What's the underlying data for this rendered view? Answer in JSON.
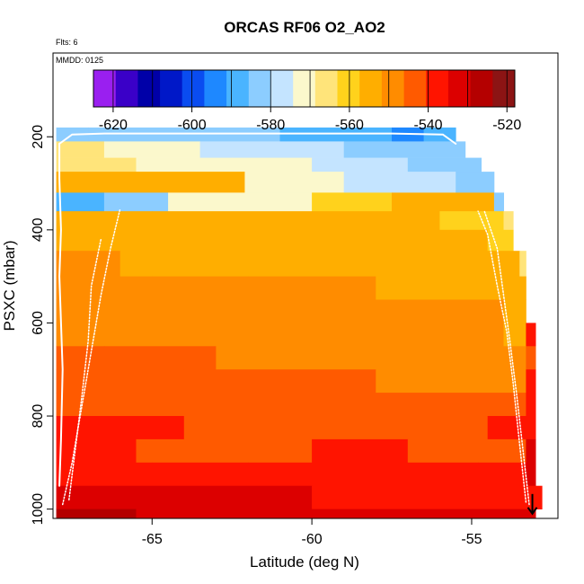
{
  "chart_data": {
    "type": "heatmap",
    "title": "ORCAS RF06 O2_AO2",
    "flights_label": "Flts: 6",
    "date_label": "MMDD: 0125",
    "xlabel": "Latitude (deg N)",
    "ylabel": "PSXC (mbar)",
    "xlim": [
      -68.1,
      -52.3
    ],
    "ylim": [
      1020,
      20
    ],
    "y_reversed": true,
    "x_ticks": [
      -65,
      -60,
      -55
    ],
    "x_tick_labels": [
      "-65",
      "-60",
      "-55"
    ],
    "y_ticks": [
      200,
      400,
      600,
      800,
      1000
    ],
    "y_tick_labels": [
      "200",
      "400",
      "600",
      "800",
      "1000"
    ],
    "colorbar": {
      "ticks": [
        -620,
        -600,
        -580,
        -560,
        -540,
        -520
      ],
      "tick_labels": [
        "-620",
        "-600",
        "-580",
        "-560",
        "-540",
        "-520"
      ],
      "range": [
        -625,
        -518
      ],
      "colors": [
        "#9a1ff0",
        "#3a00c8",
        "#0000a8",
        "#0018c8",
        "#0a4cf0",
        "#1e88ff",
        "#4ab4ff",
        "#8ccdff",
        "#c4e4ff",
        "#fbf8cc",
        "#ffe47a",
        "#ffd21c",
        "#ffae00",
        "#ff8c00",
        "#ff5a00",
        "#ff1400",
        "#dc0000",
        "#b40000",
        "#8c1414"
      ]
    },
    "rows": [
      {
        "p": [
          180,
          210
        ],
        "segs": [
          [
            -68.0,
            -67.0,
            -585
          ],
          [
            -67.0,
            -61.0,
            -584
          ],
          [
            -61.0,
            -57.5,
            -586
          ],
          [
            -57.5,
            -56.5,
            -593
          ],
          [
            -56.5,
            -55.5,
            -588
          ]
        ]
      },
      {
        "p": [
          210,
          245
        ],
        "segs": [
          [
            -68.0,
            -66.5,
            -567
          ],
          [
            -66.5,
            -63.5,
            -571
          ],
          [
            -63.5,
            -61.0,
            -575
          ],
          [
            -61.0,
            -59.0,
            -579
          ],
          [
            -59.0,
            -57.5,
            -581
          ],
          [
            -57.5,
            -55.2,
            -585
          ]
        ]
      },
      {
        "p": [
          245,
          275
        ],
        "segs": [
          [
            -68.0,
            -65.5,
            -565
          ],
          [
            -65.5,
            -62.5,
            -569
          ],
          [
            -62.5,
            -60.0,
            -573
          ],
          [
            -60.0,
            -57.0,
            -577
          ],
          [
            -57.0,
            -54.7,
            -582
          ]
        ]
      },
      {
        "p": [
          275,
          320
        ],
        "segs": [
          [
            -68.0,
            -62.1,
            -556
          ],
          [
            -62.1,
            -59.0,
            -573
          ],
          [
            -59.0,
            -55.5,
            -578
          ],
          [
            -55.5,
            -54.3,
            -582
          ]
        ]
      },
      {
        "p": [
          320,
          360
        ],
        "segs": [
          [
            -68.0,
            -66.5,
            -586
          ],
          [
            -66.5,
            -64.5,
            -580
          ],
          [
            -64.5,
            -62.0,
            -574
          ],
          [
            -62.0,
            -60.0,
            -569
          ],
          [
            -60.0,
            -57.5,
            -563
          ],
          [
            -57.5,
            -54.3,
            -556
          ],
          [
            -54.3,
            -54.0,
            -581
          ]
        ]
      },
      {
        "p": [
          360,
          400
        ],
        "segs": [
          [
            -68.0,
            -65.0,
            -555
          ],
          [
            -65.0,
            -60.0,
            -554
          ],
          [
            -60.0,
            -56.0,
            -555
          ],
          [
            -56.0,
            -54.0,
            -558
          ],
          [
            -54.0,
            -53.7,
            -565
          ]
        ]
      },
      {
        "p": [
          400,
          445
        ],
        "segs": [
          [
            -68.0,
            -64.0,
            -554
          ],
          [
            -64.0,
            -57.5,
            -553
          ],
          [
            -57.5,
            -54.5,
            -556
          ],
          [
            -54.5,
            -53.7,
            -560
          ]
        ]
      },
      {
        "p": [
          445,
          500
        ],
        "segs": [
          [
            -68.0,
            -66.0,
            -551
          ],
          [
            -66.0,
            -59.0,
            -552
          ],
          [
            -59.0,
            -55.0,
            -554
          ],
          [
            -55.0,
            -53.5,
            -557
          ],
          [
            -53.5,
            -53.3,
            -566
          ]
        ]
      },
      {
        "p": [
          500,
          550
        ],
        "segs": [
          [
            -68.0,
            -65.0,
            -549
          ],
          [
            -65.0,
            -62.0,
            -550
          ],
          [
            -62.0,
            -58.0,
            -551
          ],
          [
            -58.0,
            -54.5,
            -553
          ],
          [
            -54.5,
            -53.3,
            -556
          ]
        ]
      },
      {
        "p": [
          550,
          600
        ],
        "segs": [
          [
            -68.0,
            -63.5,
            -548
          ],
          [
            -63.5,
            -57.0,
            -549
          ],
          [
            -57.0,
            -54.0,
            -550
          ],
          [
            -54.0,
            -53.3,
            -554
          ]
        ]
      },
      {
        "p": [
          600,
          650
        ],
        "segs": [
          [
            -68.0,
            -64.0,
            -547
          ],
          [
            -64.0,
            -58.0,
            -548
          ],
          [
            -58.0,
            -54.0,
            -551
          ],
          [
            -54.0,
            -53.3,
            -555
          ],
          [
            -53.3,
            -53.0,
            -540
          ]
        ]
      },
      {
        "p": [
          650,
          700
        ],
        "segs": [
          [
            -68.0,
            -66.5,
            -543
          ],
          [
            -66.5,
            -63.0,
            -545
          ],
          [
            -63.0,
            -59.0,
            -547
          ],
          [
            -59.0,
            -55.0,
            -548
          ],
          [
            -55.0,
            -53.3,
            -551
          ],
          [
            -53.3,
            -53.0,
            -541
          ]
        ]
      },
      {
        "p": [
          700,
          750
        ],
        "segs": [
          [
            -68.0,
            -64.0,
            -544
          ],
          [
            -64.0,
            -58.0,
            -546
          ],
          [
            -58.0,
            -54.5,
            -547
          ],
          [
            -54.5,
            -53.3,
            -548
          ],
          [
            -53.3,
            -53.0,
            -535
          ]
        ]
      },
      {
        "p": [
          750,
          800
        ],
        "segs": [
          [
            -68.0,
            -63.0,
            -542
          ],
          [
            -63.0,
            -57.0,
            -545
          ],
          [
            -57.0,
            -53.5,
            -546
          ],
          [
            -53.5,
            -53.3,
            -544
          ],
          [
            -53.3,
            -53.0,
            -535
          ]
        ]
      },
      {
        "p": [
          800,
          850
        ],
        "segs": [
          [
            -68.0,
            -64.0,
            -540
          ],
          [
            -64.0,
            -60.0,
            -542
          ],
          [
            -60.0,
            -56.5,
            -541
          ],
          [
            -56.5,
            -54.5,
            -541
          ],
          [
            -54.5,
            -53.0,
            -539
          ]
        ]
      },
      {
        "p": [
          850,
          900
        ],
        "segs": [
          [
            -68.0,
            -65.5,
            -537
          ],
          [
            -65.5,
            -60.0,
            -541
          ],
          [
            -60.0,
            -57.0,
            -540
          ],
          [
            -57.0,
            -55.0,
            -541
          ],
          [
            -55.0,
            -53.3,
            -543
          ],
          [
            -53.3,
            -53.0,
            -534
          ]
        ]
      },
      {
        "p": [
          900,
          950
        ],
        "segs": [
          [
            -68.0,
            -65.0,
            -538
          ],
          [
            -65.0,
            -62.0,
            -539
          ],
          [
            -62.0,
            -57.0,
            -536
          ],
          [
            -57.0,
            -54.8,
            -535
          ],
          [
            -54.8,
            -53.3,
            -537
          ],
          [
            -53.3,
            -53.0,
            -533
          ]
        ]
      },
      {
        "p": [
          950,
          1000
        ],
        "segs": [
          [
            -68.0,
            -60.0,
            -534
          ],
          [
            -60.0,
            -55.0,
            -535
          ],
          [
            -55.0,
            -53.5,
            -538
          ],
          [
            -53.5,
            -52.8,
            -536
          ]
        ]
      },
      {
        "p": [
          1000,
          1040
        ],
        "segs": [
          [
            -68.0,
            -65.5,
            -528
          ],
          [
            -65.5,
            -60.0,
            -530
          ],
          [
            -60.0,
            -55.0,
            -532
          ],
          [
            -55.0,
            -53.0,
            -533
          ]
        ]
      }
    ],
    "flight_tracks": [
      [
        [
          -67.9,
          950
        ],
        [
          -67.85,
          850
        ],
        [
          -67.8,
          700
        ],
        [
          -67.9,
          500
        ],
        [
          -67.85,
          400
        ],
        [
          -67.9,
          290
        ],
        [
          -67.9,
          215
        ],
        [
          -67.5,
          195
        ],
        [
          -66.5,
          193
        ],
        [
          -61.0,
          193
        ],
        [
          -57.5,
          193
        ],
        [
          -55.9,
          195
        ],
        [
          -55.5,
          215
        ]
      ],
      [
        [
          -67.8,
          990
        ],
        [
          -67.5,
          900
        ],
        [
          -67.2,
          780
        ],
        [
          -66.9,
          660
        ],
        [
          -66.6,
          540
        ],
        [
          -66.3,
          440
        ],
        [
          -66.0,
          355
        ]
      ],
      [
        [
          -67.6,
          980
        ],
        [
          -67.4,
          870
        ],
        [
          -67.2,
          760
        ],
        [
          -67.0,
          640
        ],
        [
          -66.9,
          520
        ],
        [
          -66.6,
          420
        ]
      ],
      [
        [
          -53.3,
          985
        ],
        [
          -53.5,
          860
        ],
        [
          -53.7,
          730
        ],
        [
          -53.9,
          620
        ],
        [
          -54.2,
          520
        ],
        [
          -54.5,
          410
        ],
        [
          -54.8,
          360
        ]
      ],
      [
        [
          -53.2,
          990
        ],
        [
          -53.4,
          870
        ],
        [
          -53.6,
          750
        ],
        [
          -53.8,
          640
        ],
        [
          -54.0,
          540
        ],
        [
          -54.2,
          440
        ],
        [
          -54.6,
          360
        ]
      ]
    ],
    "end_marker": {
      "x": -53.1,
      "y": 1010
    },
    "grid": false,
    "colorbar_placement": "top-inside"
  }
}
